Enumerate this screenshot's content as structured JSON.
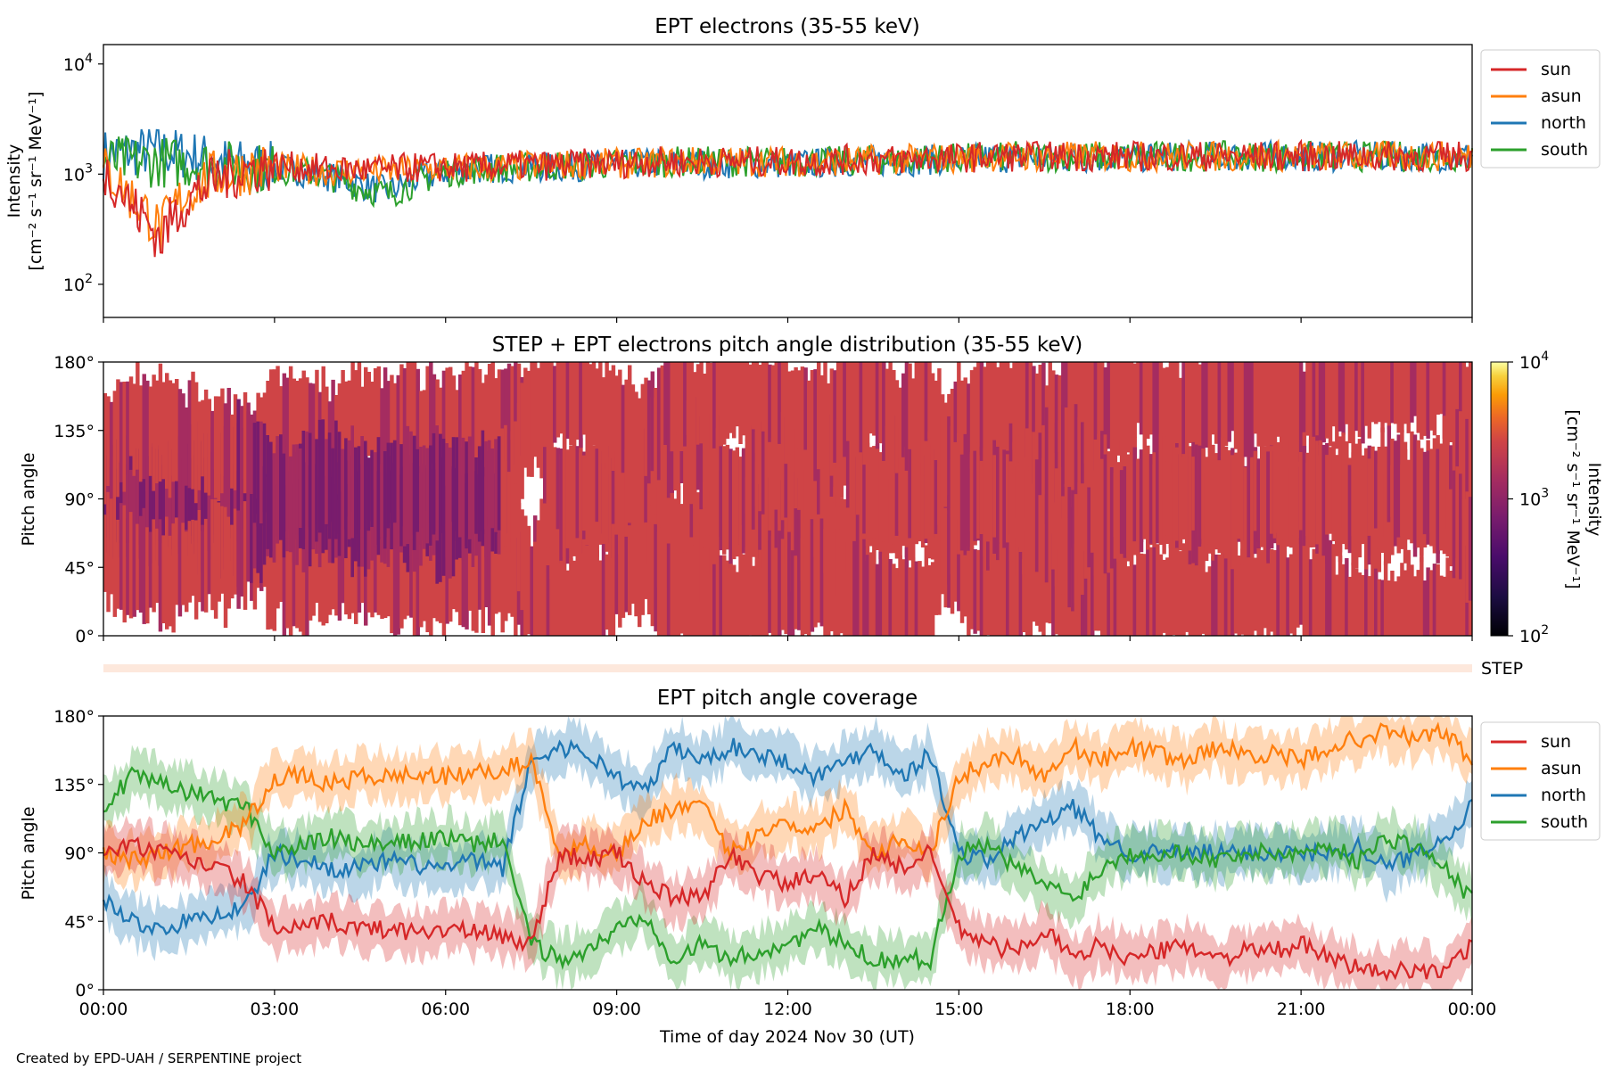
{
  "footer": {
    "credit": "Created by EPD-UAH / SERPENTINE project"
  },
  "chart_data": [
    {
      "type": "line",
      "title": "EPT electrons (35-55 keV)",
      "ylabel_line1": "Intensity",
      "ylabel_line2": "[cm⁻² s⁻¹ sr⁻¹ MeV⁻¹]",
      "yscale": "log",
      "ylim": [
        50,
        15000
      ],
      "yticks": [
        {
          "value": 100,
          "base": "10",
          "exp": "2"
        },
        {
          "value": 1000,
          "base": "10",
          "exp": "3"
        },
        {
          "value": 10000,
          "base": "10",
          "exp": "4"
        }
      ],
      "xlim_hours": [
        0,
        24
      ],
      "legend_position": "upper-right-outside",
      "legend": [
        "sun",
        "asun",
        "north",
        "south"
      ],
      "colors": {
        "sun": "#d62728",
        "asun": "#ff7f0e",
        "north": "#1f77b4",
        "south": "#2ca02c"
      },
      "x_hours": [
        0,
        0.5,
        1,
        1.5,
        2,
        2.5,
        3,
        3.5,
        4,
        4.5,
        5,
        5.5,
        6,
        6.5,
        7,
        7.5,
        8,
        8.5,
        9,
        9.5,
        10,
        10.5,
        11,
        11.5,
        12,
        12.5,
        13,
        13.5,
        14,
        14.5,
        15,
        15.5,
        16,
        16.5,
        17,
        17.5,
        18,
        18.5,
        19,
        19.5,
        20,
        20.5,
        21,
        21.5,
        22,
        22.5,
        23,
        23.5,
        24
      ],
      "series": [
        {
          "name": "sun",
          "values": [
            1100,
            500,
            250,
            600,
            900,
            1100,
            1200,
            1150,
            1100,
            1100,
            1100,
            1150,
            1150,
            1150,
            1200,
            1200,
            1200,
            1250,
            1250,
            1300,
            1300,
            1300,
            1300,
            1300,
            1300,
            1300,
            1350,
            1350,
            1350,
            1400,
            1400,
            1450,
            1450,
            1450,
            1450,
            1450,
            1450,
            1450,
            1450,
            1450,
            1450,
            1450,
            1450,
            1450,
            1450,
            1450,
            1450,
            1450,
            1450
          ]
        },
        {
          "name": "asun",
          "values": [
            1100,
            600,
            300,
            700,
            1000,
            1100,
            1150,
            1100,
            1050,
            1100,
            1050,
            1100,
            1150,
            1150,
            1150,
            1200,
            1200,
            1250,
            1250,
            1250,
            1300,
            1300,
            1300,
            1300,
            1300,
            1300,
            1300,
            1350,
            1350,
            1400,
            1400,
            1450,
            1450,
            1450,
            1450,
            1450,
            1450,
            1450,
            1450,
            1450,
            1450,
            1450,
            1450,
            1450,
            1450,
            1450,
            1450,
            1450,
            1450
          ]
        },
        {
          "name": "north",
          "values": [
            1500,
            1600,
            1600,
            1500,
            1300,
            1200,
            1150,
            1050,
            950,
            800,
            700,
            900,
            1050,
            1100,
            1150,
            1150,
            1150,
            1200,
            1200,
            1250,
            1250,
            1250,
            1250,
            1250,
            1250,
            1250,
            1300,
            1300,
            1300,
            1350,
            1350,
            1400,
            1400,
            1400,
            1400,
            1400,
            1400,
            1450,
            1450,
            1450,
            1450,
            1450,
            1450,
            1450,
            1450,
            1450,
            1450,
            1450,
            1450
          ]
        },
        {
          "name": "south",
          "values": [
            1300,
            1300,
            1300,
            1250,
            1200,
            1150,
            1100,
            1050,
            950,
            750,
            650,
            850,
            1050,
            1100,
            1150,
            1150,
            1200,
            1200,
            1250,
            1250,
            1300,
            1300,
            1300,
            1300,
            1300,
            1300,
            1300,
            1350,
            1350,
            1400,
            1400,
            1400,
            1450,
            1450,
            1450,
            1450,
            1450,
            1450,
            1450,
            1450,
            1450,
            1450,
            1450,
            1450,
            1450,
            1450,
            1450,
            1450,
            1450
          ]
        }
      ]
    },
    {
      "type": "heatmap",
      "title": "STEP + EPT electrons pitch angle distribution (35-55 keV)",
      "ylabel": "Pitch angle",
      "ylim": [
        0,
        180
      ],
      "yticks": [
        "0°",
        "45°",
        "90°",
        "135°",
        "180°"
      ],
      "xlim_hours": [
        0,
        24
      ],
      "colorbar": {
        "label_line1": "Intensity",
        "label_line2": "[cm⁻² s⁻¹ sr⁻¹ MeV⁻¹]",
        "scale": "log",
        "range": [
          100,
          10000
        ],
        "colormap": "inferno",
        "ticks": [
          {
            "value": 100,
            "base": "10",
            "exp": "2"
          },
          {
            "value": 1000,
            "base": "10",
            "exp": "3"
          },
          {
            "value": 10000,
            "base": "10",
            "exp": "4"
          }
        ]
      },
      "typical_intensity": 1200,
      "central_band_intensity_00_07h": 600
    },
    {
      "type": "bar",
      "label": "STEP",
      "note": "thin STEP coverage strip spanning 00:00-24:00"
    },
    {
      "type": "line",
      "title": "EPT pitch angle coverage",
      "ylabel": "Pitch angle",
      "ylim": [
        0,
        180
      ],
      "yticks": [
        "0°",
        "45°",
        "90°",
        "135°",
        "180°"
      ],
      "xlabel": "Time of day 2024 Nov 30 (UT)",
      "xlim_hours": [
        0,
        24
      ],
      "xticks": [
        "00:00",
        "03:00",
        "06:00",
        "09:00",
        "12:00",
        "15:00",
        "18:00",
        "21:00",
        "00:00"
      ],
      "legend_position": "upper-right-outside",
      "legend": [
        "sun",
        "asun",
        "north",
        "south"
      ],
      "band_halfwidth_deg": 15,
      "x_hours": [
        0,
        0.5,
        1,
        1.5,
        2,
        2.5,
        3,
        3.5,
        4,
        4.5,
        5,
        5.5,
        6,
        6.5,
        7,
        7.5,
        8,
        8.5,
        9,
        9.5,
        10,
        10.5,
        11,
        11.5,
        12,
        12.5,
        13,
        13.5,
        14,
        14.5,
        15,
        15.5,
        16,
        16.5,
        17,
        17.5,
        18,
        18.5,
        19,
        19.5,
        20,
        20.5,
        21,
        21.5,
        22,
        22.5,
        23,
        23.5,
        24
      ],
      "series": [
        {
          "name": "sun",
          "values": [
            90,
            95,
            90,
            85,
            80,
            70,
            40,
            40,
            45,
            40,
            40,
            38,
            40,
            38,
            35,
            30,
            90,
            85,
            90,
            70,
            60,
            60,
            90,
            75,
            70,
            75,
            60,
            90,
            80,
            90,
            40,
            30,
            25,
            40,
            20,
            30,
            20,
            25,
            30,
            20,
            25,
            25,
            30,
            20,
            15,
            10,
            15,
            10,
            30
          ]
        },
        {
          "name": "asun",
          "values": [
            90,
            85,
            90,
            95,
            100,
            110,
            140,
            140,
            135,
            140,
            140,
            142,
            140,
            142,
            145,
            150,
            90,
            95,
            90,
            110,
            120,
            120,
            90,
            105,
            110,
            105,
            120,
            90,
            100,
            90,
            140,
            150,
            155,
            140,
            160,
            150,
            160,
            155,
            150,
            160,
            155,
            155,
            150,
            160,
            165,
            170,
            165,
            170,
            150
          ]
        },
        {
          "name": "north",
          "values": [
            60,
            45,
            40,
            45,
            50,
            55,
            90,
            85,
            80,
            80,
            85,
            82,
            80,
            85,
            80,
            150,
            160,
            155,
            140,
            130,
            160,
            150,
            160,
            155,
            150,
            140,
            150,
            160,
            140,
            155,
            90,
            85,
            100,
            110,
            120,
            100,
            90,
            90,
            90,
            90,
            90,
            90,
            90,
            90,
            95,
            80,
            90,
            100,
            120
          ]
        },
        {
          "name": "south",
          "values": [
            120,
            140,
            135,
            130,
            125,
            120,
            90,
            95,
            100,
            95,
            95,
            98,
            100,
            95,
            100,
            30,
            20,
            25,
            40,
            50,
            20,
            30,
            20,
            25,
            30,
            40,
            30,
            20,
            20,
            20,
            90,
            95,
            80,
            70,
            60,
            80,
            90,
            90,
            90,
            85,
            90,
            90,
            90,
            95,
            85,
            100,
            95,
            80,
            60
          ]
        }
      ]
    }
  ]
}
